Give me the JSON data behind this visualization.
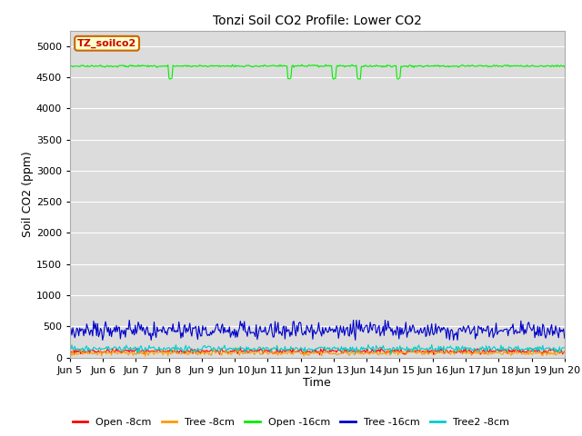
{
  "title": "Tonzi Soil CO2 Profile: Lower CO2",
  "xlabel": "Time",
  "ylabel": "Soil CO2 (ppm)",
  "ylim": [
    0,
    5250
  ],
  "xlim": [
    5,
    20
  ],
  "background_color": "#dcdcdc",
  "figure_background": "#ffffff",
  "yticks": [
    0,
    500,
    1000,
    1500,
    2000,
    2500,
    3000,
    3500,
    4000,
    4500,
    5000
  ],
  "xtick_labels": [
    "Jun 5",
    "Jun 6",
    "Jun 7",
    "Jun 8",
    "Jun 9",
    "Jun 10",
    "Jun 11",
    "Jun 12",
    "Jun 13",
    "Jun 14",
    "Jun 15",
    "Jun 16",
    "Jun 17",
    "Jun 18",
    "Jun 19",
    "Jun 20"
  ],
  "xtick_positions": [
    5,
    6,
    7,
    8,
    9,
    10,
    11,
    12,
    13,
    14,
    15,
    16,
    17,
    18,
    19,
    20
  ],
  "label_box_text": "TZ_soilco2",
  "label_box_facecolor": "#ffffcc",
  "label_box_edgecolor": "#cc6600",
  "label_box_textcolor": "#cc0000",
  "series": [
    {
      "name": "Open -8cm",
      "color": "#ff0000",
      "base": 100,
      "noise": 20,
      "seed": 1
    },
    {
      "name": "Tree -8cm",
      "color": "#ff9900",
      "base": 75,
      "noise": 20,
      "seed": 2
    },
    {
      "name": "Open -16cm",
      "color": "#00ee00",
      "base": 4680,
      "noise": 8,
      "seed": 3
    },
    {
      "name": "Tree -16cm",
      "color": "#0000cc",
      "base": 430,
      "noise": 70,
      "seed": 4
    },
    {
      "name": "Tree2 -8cm",
      "color": "#00cccc",
      "base": 140,
      "noise": 25,
      "seed": 5
    }
  ],
  "n_points": 500,
  "title_fontsize": 10,
  "axis_label_fontsize": 9,
  "tick_fontsize": 8,
  "legend_fontsize": 8,
  "linewidth": 0.8,
  "open16_dips": [
    100,
    220,
    265,
    290,
    330
  ],
  "open16_dip_depth": 200
}
